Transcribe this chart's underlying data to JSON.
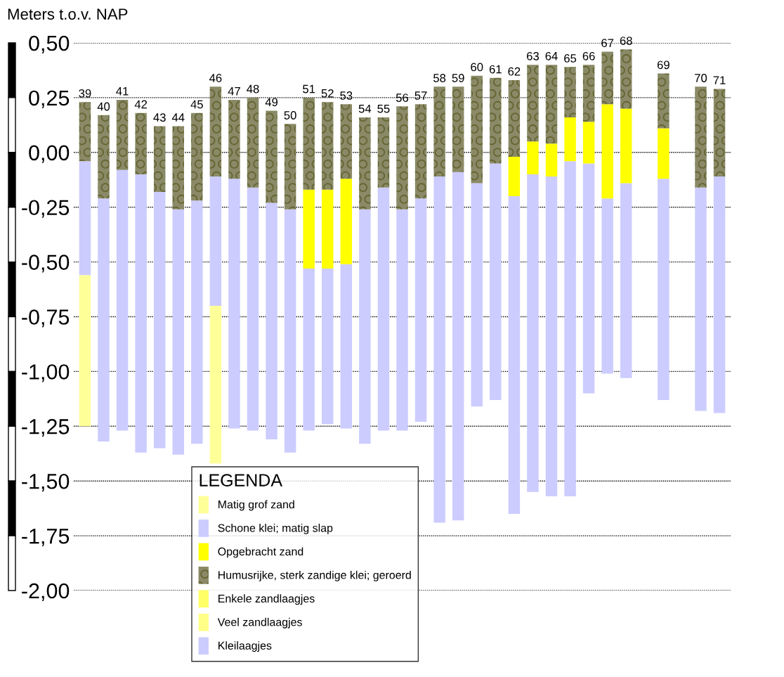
{
  "chart_data": {
    "type": "bar",
    "ylabel": "Meters t.o.v. NAP",
    "legend_title": "LEGENDA",
    "legend": "bottom",
    "grid": "y",
    "tick_labels": "y",
    "categories": [
      "39",
      "40",
      "41",
      "42",
      "43",
      "44",
      "45",
      "46",
      "47",
      "48",
      "49",
      "50",
      "51",
      "52",
      "53",
      "54",
      "55",
      "56",
      "57",
      "58",
      "59",
      "60",
      "61",
      "62",
      "63",
      "64",
      "65",
      "66",
      "67",
      "68",
      null,
      "69",
      null,
      "70",
      "71"
    ],
    "series": [
      {
        "name": "Matig grof zand",
        "color": "#ffff99",
        "base": [
          -1.25,
          null,
          null,
          null,
          null,
          null,
          null,
          -1.42,
          null,
          null,
          null,
          null,
          null,
          null,
          null,
          null,
          null,
          null,
          null,
          null,
          null,
          null,
          null,
          null,
          null,
          null,
          null,
          null,
          null,
          null,
          null,
          null,
          null,
          null,
          null
        ],
        "values": [
          0.69,
          null,
          null,
          null,
          null,
          null,
          null,
          0.72,
          null,
          null,
          null,
          null,
          null,
          null,
          null,
          null,
          null,
          null,
          null,
          null,
          null,
          null,
          null,
          null,
          null,
          null,
          null,
          null,
          null,
          null,
          null,
          null,
          null,
          null,
          null
        ]
      },
      {
        "name": "Schone klei; matig slap",
        "color": "#ccccff",
        "base": [
          -0.56,
          -1.32,
          -1.27,
          -1.37,
          -1.35,
          -1.38,
          -1.33,
          -0.7,
          -1.26,
          -1.27,
          -1.31,
          -1.37,
          -1.27,
          -1.24,
          -1.26,
          -1.33,
          -1.27,
          -1.27,
          -1.23,
          -1.69,
          -1.68,
          -1.16,
          -1.13,
          -1.65,
          -1.55,
          -1.57,
          -1.57,
          -1.1,
          -1.01,
          -1.03,
          null,
          -1.13,
          null,
          -1.18,
          -1.19
        ],
        "values": [
          0.52,
          1.11,
          1.19,
          1.27,
          1.17,
          1.12,
          1.11,
          0.59,
          1.14,
          1.11,
          1.08,
          1.11,
          0.74,
          0.71,
          0.75,
          1.07,
          1.11,
          1.01,
          1.02,
          1.58,
          1.59,
          1.02,
          1.08,
          1.45,
          1.45,
          1.46,
          1.53,
          1.05,
          0.8,
          0.89,
          null,
          1.01,
          null,
          1.02,
          1.08
        ]
      },
      {
        "name": "Opgebracht zand",
        "color": "#ffff00",
        "base": [
          null,
          null,
          null,
          null,
          null,
          null,
          null,
          null,
          null,
          null,
          null,
          null,
          -0.53,
          -0.53,
          -0.51,
          null,
          null,
          null,
          null,
          null,
          null,
          null,
          null,
          -0.2,
          -0.1,
          -0.11,
          -0.04,
          -0.05,
          -0.21,
          -0.14,
          null,
          -0.12,
          null,
          null,
          null
        ],
        "values": [
          null,
          null,
          null,
          null,
          null,
          null,
          null,
          null,
          null,
          null,
          null,
          null,
          0.36,
          0.36,
          0.39,
          null,
          null,
          null,
          null,
          null,
          null,
          null,
          null,
          0.18,
          0.15,
          0.15,
          0.2,
          0.19,
          0.43,
          0.34,
          null,
          0.23,
          null,
          null,
          null
        ]
      },
      {
        "name": "Humusrijke, sterk zandige klei; geroerd",
        "color": "#8a8a68",
        "base": [
          -0.04,
          -0.21,
          -0.08,
          -0.1,
          -0.18,
          -0.26,
          -0.22,
          -0.11,
          -0.12,
          -0.16,
          -0.23,
          -0.26,
          -0.17,
          -0.17,
          -0.12,
          -0.26,
          -0.16,
          -0.26,
          -0.21,
          -0.11,
          -0.09,
          -0.14,
          -0.05,
          -0.02,
          0.05,
          0.04,
          0.16,
          0.14,
          0.22,
          0.2,
          null,
          0.11,
          null,
          -0.16,
          -0.11
        ],
        "values": [
          0.27,
          0.38,
          0.32,
          0.28,
          0.3,
          0.38,
          0.4,
          0.41,
          0.36,
          0.41,
          0.42,
          0.39,
          0.42,
          0.4,
          0.34,
          0.42,
          0.32,
          0.47,
          0.43,
          0.41,
          0.39,
          0.49,
          0.39,
          0.35,
          0.35,
          0.36,
          0.23,
          0.26,
          0.24,
          0.27,
          null,
          0.25,
          null,
          0.46,
          0.4
        ]
      },
      {
        "name": "Enkele zandlaagjes",
        "color": "#ffff66",
        "values": [
          null,
          null,
          null,
          null,
          null,
          null,
          null,
          null,
          null,
          null,
          null,
          null,
          null,
          null,
          null,
          null,
          null,
          null,
          null,
          null,
          null,
          null,
          null,
          null,
          null,
          null,
          null,
          null,
          null,
          null,
          null,
          null,
          null,
          null,
          null
        ]
      },
      {
        "name": "Veel zandlaagjes",
        "color": "#ffff88",
        "values": [
          null,
          null,
          null,
          null,
          null,
          null,
          null,
          null,
          null,
          null,
          null,
          null,
          null,
          null,
          null,
          null,
          null,
          null,
          null,
          null,
          null,
          null,
          null,
          null,
          null,
          null,
          null,
          null,
          null,
          null,
          null,
          null,
          null,
          null,
          null
        ]
      },
      {
        "name": "Kleilaagjes",
        "color": "#ccccfe",
        "values": [
          null,
          null,
          null,
          null,
          null,
          null,
          null,
          null,
          null,
          null,
          null,
          null,
          null,
          null,
          null,
          null,
          null,
          null,
          null,
          null,
          null,
          null,
          null,
          null,
          null,
          null,
          null,
          null,
          null,
          null,
          null,
          null,
          null,
          null,
          null
        ]
      }
    ],
    "ylim": [
      -2.0,
      0.5
    ],
    "yticks": [
      {
        "value": 0.5,
        "label": "0,50"
      },
      {
        "value": 0.25,
        "label": "0,25"
      },
      {
        "value": 0.0,
        "label": "0,00"
      },
      {
        "value": -0.25,
        "label": "-0,25"
      },
      {
        "value": -0.5,
        "label": "-0,50"
      },
      {
        "value": -0.75,
        "label": "-0,75"
      },
      {
        "value": -1.0,
        "label": "-1,00"
      },
      {
        "value": -1.25,
        "label": "-1,25"
      },
      {
        "value": -1.5,
        "label": "-1,50"
      },
      {
        "value": -1.75,
        "label": "-1,75"
      },
      {
        "value": -2.0,
        "label": "-2,00"
      }
    ]
  }
}
